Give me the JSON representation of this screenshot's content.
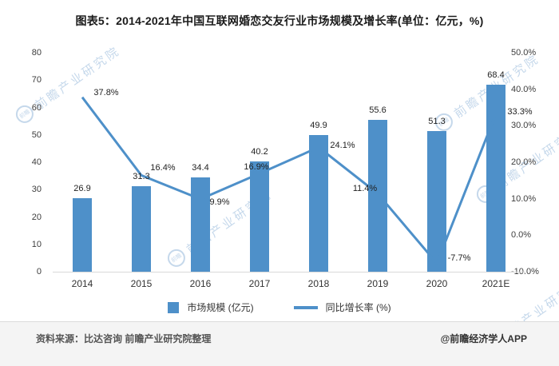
{
  "title": "图表5：2014-2021年中国互联网婚恋交友行业市场规模及增长率(单位：亿元，%)",
  "chart_data": {
    "type": "bar+line",
    "categories": [
      "2014",
      "2015",
      "2016",
      "2017",
      "2018",
      "2019",
      "2020",
      "2021E"
    ],
    "series": [
      {
        "name": "市场规模 (亿元)",
        "type": "bar",
        "values": [
          26.9,
          31.3,
          34.4,
          40.2,
          49.9,
          55.6,
          51.3,
          68.4
        ],
        "color": "#4E90C9"
      },
      {
        "name": "同比增长率 (%)",
        "type": "line",
        "values": [
          37.8,
          16.4,
          9.9,
          16.9,
          24.1,
          11.4,
          -7.7,
          33.3
        ],
        "color": "#4E90C9",
        "label_suffix": "%"
      }
    ],
    "left_axis": {
      "min": 0,
      "max": 80,
      "step": 10,
      "ticks": [
        "0",
        "10",
        "20",
        "30",
        "40",
        "50",
        "60",
        "70",
        "80"
      ]
    },
    "right_axis": {
      "min": -10,
      "max": 50,
      "step": 10,
      "ticks": [
        "-10.0%",
        "0.0%",
        "10.0%",
        "20.0%",
        "30.0%",
        "40.0%",
        "50.0%"
      ]
    },
    "grid": false,
    "legend_position": "bottom"
  },
  "legend": {
    "bar_label": "市场规模 (亿元)",
    "line_label": "同比增长率 (%)"
  },
  "watermark": {
    "text": "前瞻产业研究院",
    "logo_text": "前瞻"
  },
  "footer": {
    "source": "资料来源：比达咨询 前瞻产业研究院整理",
    "credit": "@前瞻经济学人APP"
  }
}
